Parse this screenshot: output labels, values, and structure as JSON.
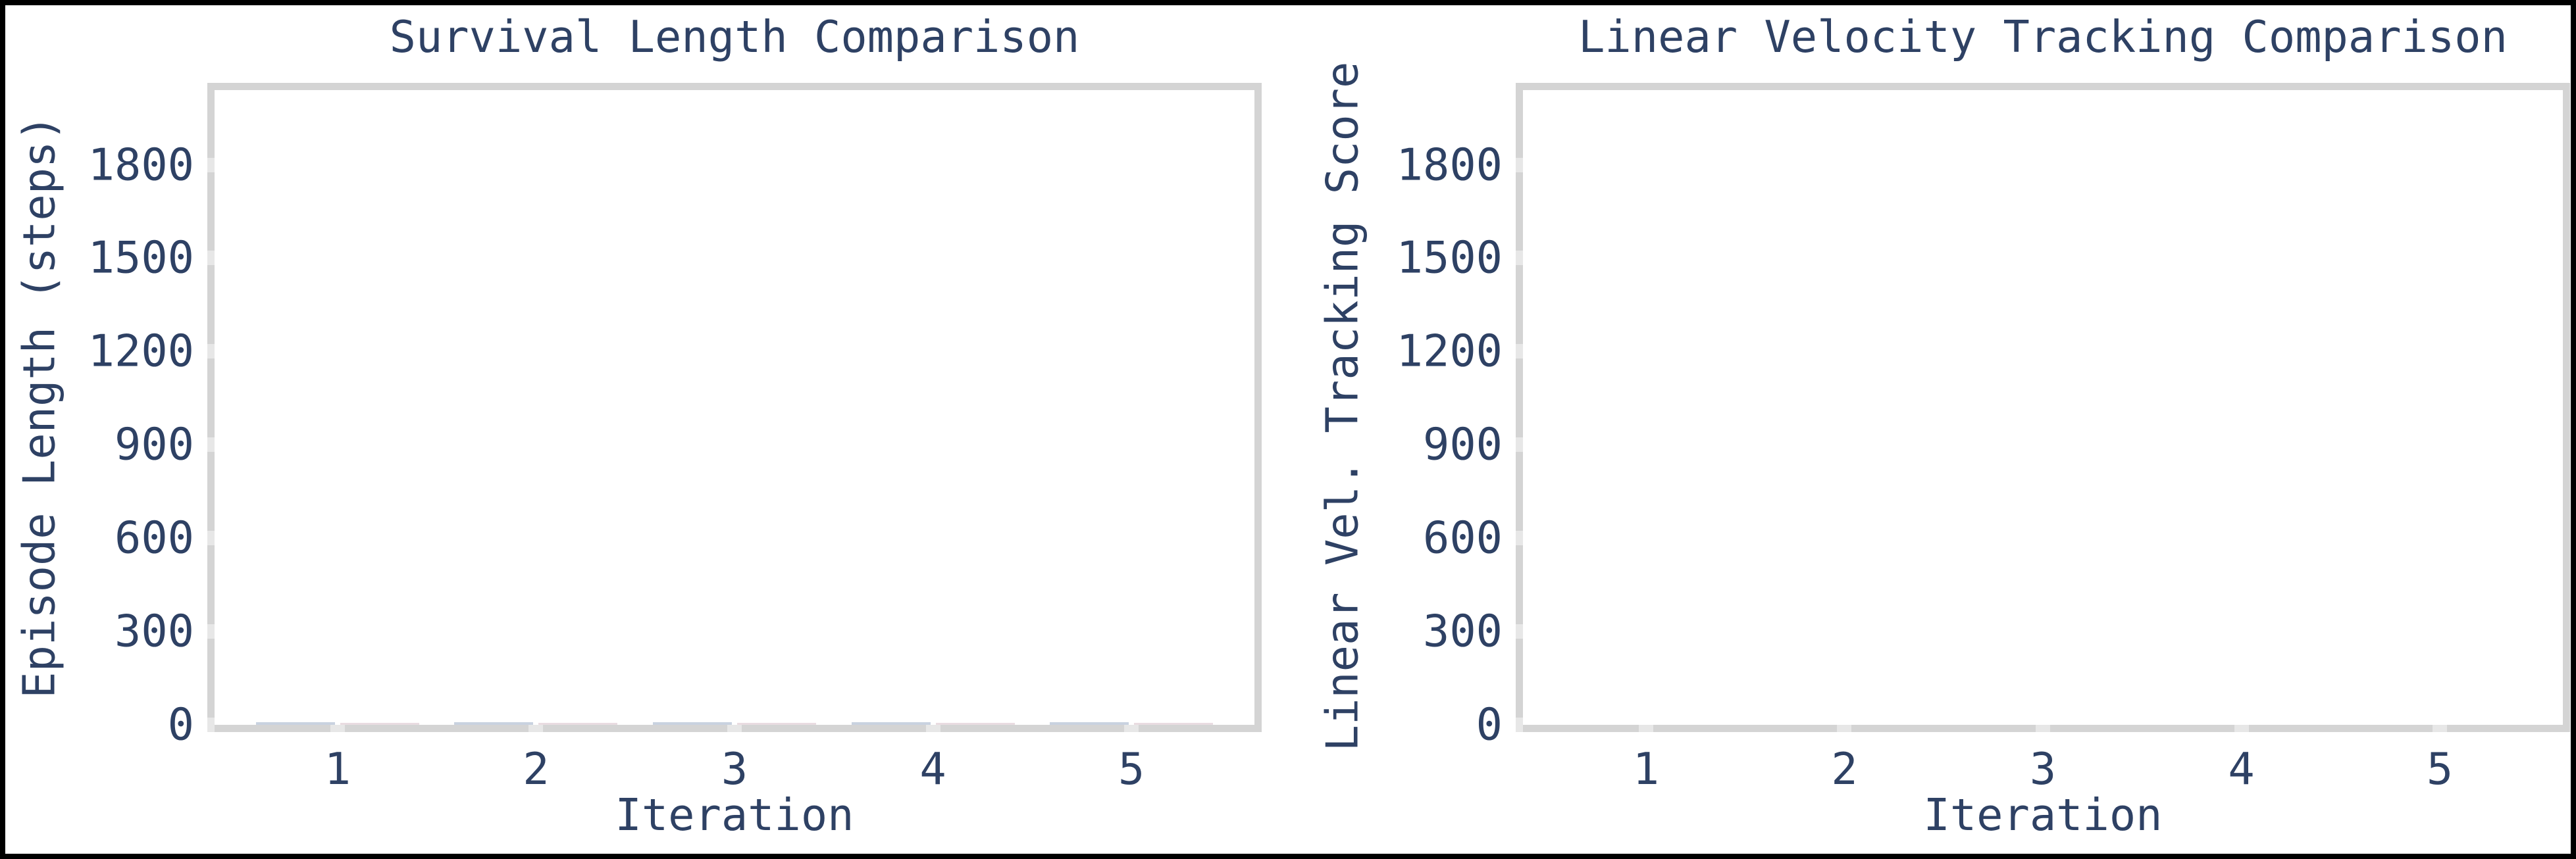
{
  "figure": {
    "background_color": "#ffffff",
    "frame_color": "#000000",
    "text_color": "#2e4164",
    "spine_color": "#d4d4d4",
    "tick_mark_color": "#e7e7e7"
  },
  "chart_data": [
    {
      "type": "bar",
      "title": "Survival Length Comparison",
      "xlabel": "Iteration",
      "ylabel": "Episode Length (steps)",
      "categories": [
        1,
        2,
        3,
        4,
        5
      ],
      "x_tick_labels": [
        "1",
        "2",
        "3",
        "4",
        "5"
      ],
      "y_tick_labels": [
        "0",
        "300",
        "600",
        "900",
        "1200",
        "1500",
        "1800"
      ],
      "yticks": [
        0,
        300,
        600,
        900,
        1200,
        1500,
        1800
      ],
      "ylim": [
        0,
        2040
      ],
      "xlim": [
        0.38,
        5.62
      ],
      "grid": false,
      "legend": "none",
      "series": [
        {
          "name": "series-1",
          "color": "#c9d2e0",
          "values": [
            8,
            8,
            8,
            8,
            8
          ]
        },
        {
          "name": "series-2",
          "color": "#e9dce1",
          "values": [
            6,
            6,
            6,
            6,
            6
          ]
        }
      ],
      "note": "grouped bars are near zero height; only thin colored slivers visible along the baseline"
    },
    {
      "type": "bar",
      "title": "Linear Velocity Tracking Comparison",
      "xlabel": "Iteration",
      "ylabel": "Linear Vel. Tracking Score",
      "categories": [
        1,
        2,
        3,
        4,
        5
      ],
      "x_tick_labels": [
        "1",
        "2",
        "3",
        "4",
        "5"
      ],
      "y_tick_labels": [
        "0",
        "300",
        "600",
        "900",
        "1200",
        "1500",
        "1800"
      ],
      "yticks": [
        0,
        300,
        600,
        900,
        1200,
        1500,
        1800
      ],
      "ylim": [
        0,
        2040
      ],
      "xlim": [
        0.38,
        5.62
      ],
      "grid": false,
      "legend": "none",
      "series": [
        {
          "name": "series-1",
          "color": "#c9d2e0",
          "values": [
            0,
            0,
            0,
            0,
            0
          ]
        },
        {
          "name": "series-2",
          "color": "#e9dce1",
          "values": [
            0,
            0,
            0,
            0,
            0
          ]
        }
      ],
      "note": "plot area appears empty; bar values indistinguishable from zero"
    }
  ]
}
